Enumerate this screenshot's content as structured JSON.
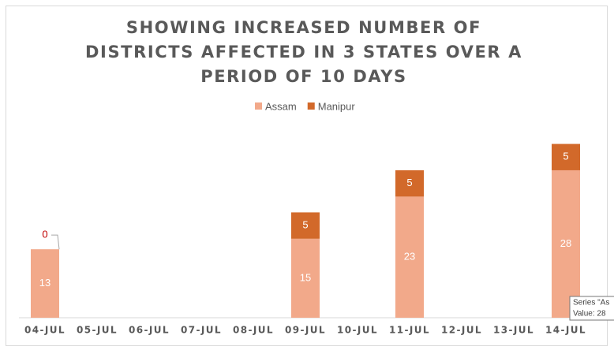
{
  "chart_data": {
    "type": "stacked-bar",
    "title": "SHOWING INCREASED NUMBER OF DISTRICTS AFFECTED IN 3 STATES OVER A PERIOD OF 10 DAYS",
    "categories": [
      "04-JUL",
      "05-JUL",
      "06-JUL",
      "07-JUL",
      "08-JUL",
      "09-JUL",
      "10-JUL",
      "11-JUL",
      "12-JUL",
      "13-JUL",
      "14-JUL"
    ],
    "series": [
      {
        "name": "Assam",
        "color": "#f2a98a",
        "values": [
          13,
          null,
          null,
          null,
          null,
          15,
          null,
          23,
          null,
          null,
          28
        ]
      },
      {
        "name": "Manipur",
        "color": "#d2692a",
        "values": [
          0,
          null,
          null,
          null,
          null,
          5,
          null,
          5,
          null,
          null,
          5
        ]
      }
    ],
    "legend": "top",
    "tooltip": {
      "line1": "Series \"As",
      "line2": "Value: 28"
    }
  }
}
